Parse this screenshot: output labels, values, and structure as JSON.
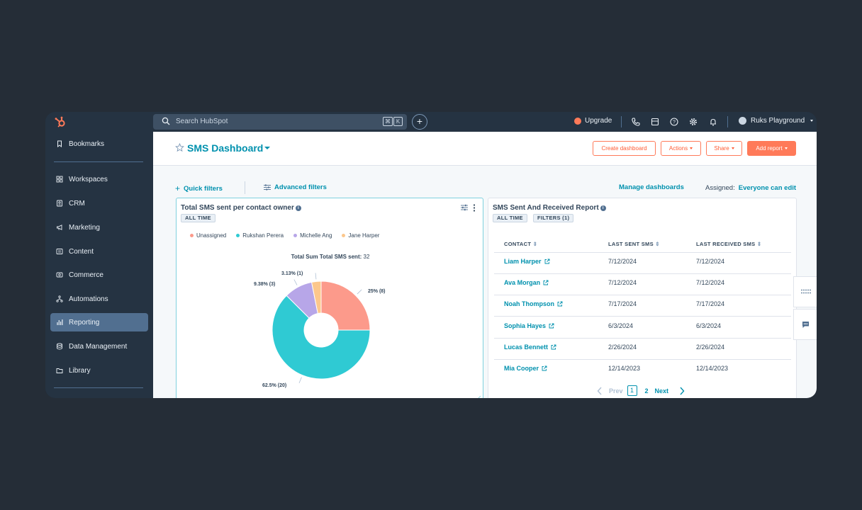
{
  "nav": {
    "search_placeholder": "Search HubSpot",
    "kbd1": "⌘",
    "kbd2": "K",
    "upgrade_label": "Upgrade",
    "account_name": "Ruks Playground"
  },
  "sidebar": {
    "items": [
      {
        "label": "Bookmarks",
        "icon": "bookmark-icon"
      },
      {
        "label": "Workspaces",
        "icon": "grid-icon"
      },
      {
        "label": "CRM",
        "icon": "contact-card-icon"
      },
      {
        "label": "Marketing",
        "icon": "megaphone-icon"
      },
      {
        "label": "Content",
        "icon": "content-icon"
      },
      {
        "label": "Commerce",
        "icon": "commerce-icon"
      },
      {
        "label": "Automations",
        "icon": "automation-icon"
      },
      {
        "label": "Reporting",
        "icon": "reporting-icon",
        "active": true
      },
      {
        "label": "Data Management",
        "icon": "database-icon"
      },
      {
        "label": "Library",
        "icon": "folder-icon"
      }
    ]
  },
  "header": {
    "title": "SMS Dashboard",
    "create_label": "Create dashboard",
    "actions_label": "Actions",
    "share_label": "Share",
    "add_report_label": "Add report"
  },
  "filters": {
    "quick": "Quick filters",
    "advanced": "Advanced filters",
    "manage": "Manage dashboards",
    "assigned_label": "Assigned:",
    "assigned_value": "Everyone can edit"
  },
  "report1": {
    "title": "Total SMS sent per contact owner",
    "tag": "ALL TIME",
    "total_label": "Total Sum Total SMS sent:",
    "total_value": "32"
  },
  "report2": {
    "title": "SMS Sent And Received Report",
    "tag1": "ALL TIME",
    "tag2": "FILTERS (1)",
    "columns": [
      "CONTACT",
      "LAST SENT SMS",
      "LAST RECEIVED SMS"
    ],
    "rows": [
      {
        "contact": "Liam Harper",
        "sent": "7/12/2024",
        "received": "7/12/2024"
      },
      {
        "contact": "Ava Morgan",
        "sent": "7/12/2024",
        "received": "7/12/2024"
      },
      {
        "contact": "Noah Thompson",
        "sent": "7/17/2024",
        "received": "7/17/2024"
      },
      {
        "contact": "Sophia Hayes",
        "sent": "6/3/2024",
        "received": "6/3/2024"
      },
      {
        "contact": "Lucas Bennett",
        "sent": "2/26/2024",
        "received": "2/26/2024"
      },
      {
        "contact": "Mia Cooper",
        "sent": "12/14/2023",
        "received": "12/14/2023"
      }
    ],
    "pager": {
      "prev": "Prev",
      "page1": "1",
      "page2": "2",
      "next": "Next"
    }
  },
  "chart_data": {
    "type": "pie",
    "donut": true,
    "series": [
      {
        "name": "Unassigned",
        "value": 8,
        "label": "25% (8)",
        "color": "#fc9a8b"
      },
      {
        "name": "Rukshan Perera",
        "value": 20,
        "label": "62.5% (20)",
        "color": "#2fcad3"
      },
      {
        "name": "Michelle Ang",
        "value": 3,
        "label": "9.38% (3)",
        "color": "#b7a6e8"
      },
      {
        "name": "Jane Harper",
        "value": 1,
        "label": "3.13% (1)",
        "color": "#fcc78c"
      }
    ],
    "legend_position": "top-left"
  },
  "colors": {
    "accent": "#0091ae",
    "brand": "#ff7a59",
    "nav_bg": "#253342"
  }
}
